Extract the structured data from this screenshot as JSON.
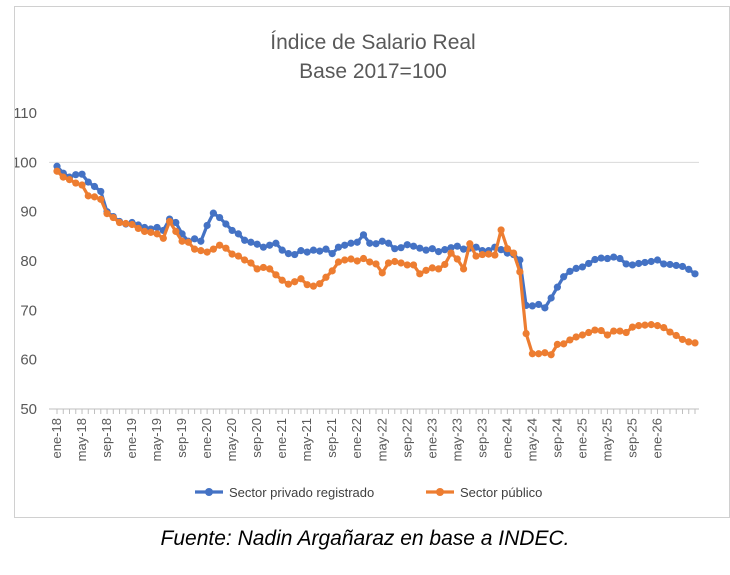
{
  "chart_data": {
    "type": "line",
    "title": [
      "Índice de Salario Real",
      "Base 2017=100"
    ],
    "xlabel": "",
    "ylabel": "",
    "ylim": [
      50,
      110
    ],
    "yticks": [
      "50",
      "60",
      "70",
      "80",
      "90",
      "100",
      "110"
    ],
    "grid": "single gridline at 100",
    "legend_position": "bottom",
    "x_tick_labels": [
      "ene-18",
      "may-18",
      "sep-18",
      "ene-19",
      "may-19",
      "sep-19",
      "ene-20",
      "may-20",
      "sep-20",
      "ene-21",
      "may-21",
      "sep-21",
      "ene-22",
      "may-22",
      "sep-22",
      "ene-23",
      "may-23",
      "sep-23",
      "ene-24",
      "may-24",
      "sep-24",
      "ene-25",
      "may-25",
      "sep-25",
      "ene-26"
    ],
    "x_start": "2018-01",
    "series": [
      {
        "name": "Sector privado registrado",
        "color": "#4472C4",
        "values": [
          99.2,
          97.8,
          97.0,
          97.5,
          97.6,
          96.0,
          95.1,
          94.1,
          90.0,
          89.0,
          88.0,
          87.5,
          87.8,
          87.3,
          86.8,
          86.5,
          86.8,
          86.2,
          88.5,
          87.8,
          85.5,
          84.0,
          84.5,
          84.0,
          87.2,
          89.7,
          88.8,
          87.5,
          86.2,
          85.5,
          84.2,
          83.8,
          83.4,
          82.8,
          83.2,
          83.6,
          82.2,
          81.5,
          81.3,
          82.1,
          81.8,
          82.2,
          82.0,
          82.4,
          81.5,
          82.8,
          83.2,
          83.6,
          83.8,
          85.3,
          83.6,
          83.5,
          84.0,
          83.6,
          82.5,
          82.7,
          83.3,
          83.0,
          82.6,
          82.2,
          82.5,
          81.9,
          82.3,
          82.7,
          83.0,
          82.4,
          82.6,
          82.8,
          82.1,
          82.1,
          82.8,
          82.3,
          81.6,
          81.3,
          80.2,
          71.0,
          70.9,
          71.2,
          70.5,
          72.5,
          74.7,
          76.8,
          77.9,
          78.5,
          78.8,
          79.5,
          80.3,
          80.6,
          80.5,
          80.8,
          80.5,
          79.4,
          79.2,
          79.5,
          79.7,
          79.9,
          80.2,
          79.4,
          79.3,
          79.1,
          78.9,
          78.3,
          77.4
        ]
      },
      {
        "name": "Sector público",
        "color": "#ED7D31",
        "values": [
          98.2,
          97.0,
          96.5,
          95.8,
          95.4,
          93.2,
          93.0,
          92.5,
          89.6,
          88.8,
          87.8,
          87.6,
          87.4,
          86.6,
          86.0,
          85.8,
          85.5,
          84.6,
          88.0,
          86.0,
          84.0,
          83.8,
          82.4,
          82.1,
          81.8,
          82.4,
          83.2,
          82.6,
          81.4,
          81.0,
          80.2,
          79.6,
          78.4,
          78.7,
          78.4,
          77.2,
          76.1,
          75.3,
          75.8,
          76.4,
          75.2,
          74.9,
          75.4,
          76.7,
          78.0,
          79.8,
          80.2,
          80.4,
          80.0,
          80.5,
          79.8,
          79.4,
          77.6,
          79.6,
          79.9,
          79.6,
          79.2,
          79.2,
          77.4,
          78.1,
          78.6,
          78.4,
          79.3,
          81.6,
          80.4,
          78.4,
          83.5,
          81.0,
          81.3,
          81.4,
          81.2,
          86.3,
          82.5,
          81.6,
          77.8,
          65.3,
          61.2,
          61.2,
          61.4,
          61.0,
          63.1,
          63.2,
          64.0,
          64.6,
          65.0,
          65.5,
          66.0,
          65.9,
          65.0,
          65.8,
          65.8,
          65.5,
          66.6,
          66.9,
          67.0,
          67.1,
          66.9,
          66.5,
          65.6,
          64.9,
          64.1,
          63.6,
          63.4
        ]
      }
    ]
  },
  "footer": {
    "source": "Fuente: Nadin Argañaraz en base a INDEC."
  }
}
